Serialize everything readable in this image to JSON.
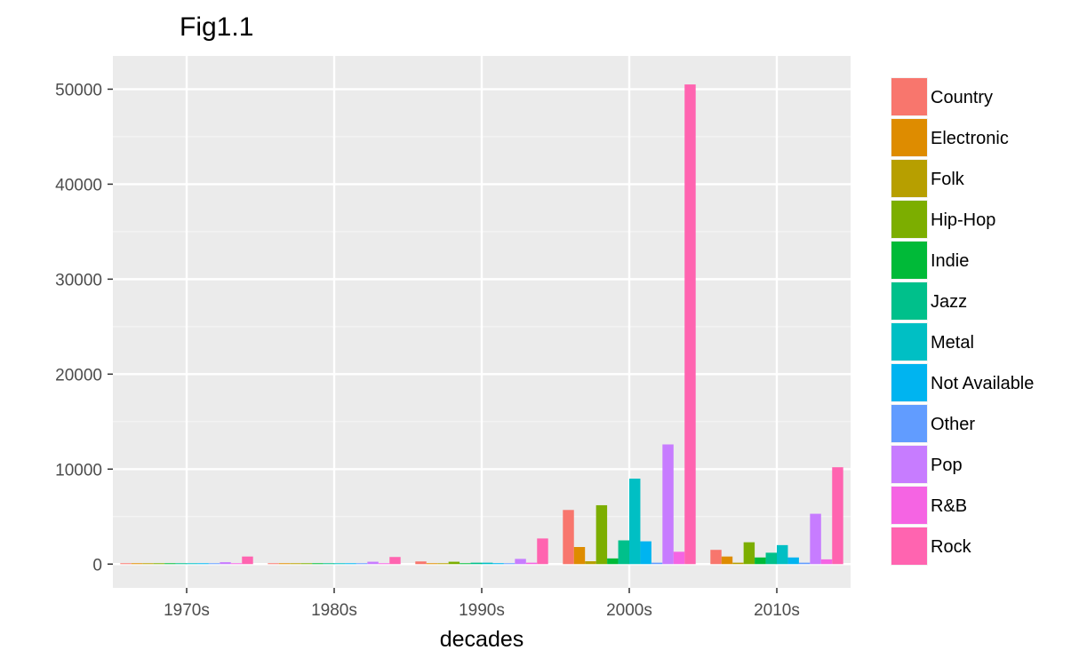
{
  "chart_data": {
    "type": "bar",
    "title": "Fig1.1",
    "xlabel": "decades",
    "ylabel": "",
    "categories": [
      "1970s",
      "1980s",
      "1990s",
      "2000s",
      "2010s"
    ],
    "ylim": [
      -2500,
      53500
    ],
    "yticks": [
      0,
      10000,
      20000,
      30000,
      40000,
      50000
    ],
    "grid": true,
    "legend_position": "right",
    "series": [
      {
        "name": "Country",
        "color": "#F8766D",
        "values": [
          40,
          80,
          280,
          5700,
          1500
        ]
      },
      {
        "name": "Electronic",
        "color": "#DE8C00",
        "values": [
          40,
          60,
          80,
          1800,
          800
        ]
      },
      {
        "name": "Folk",
        "color": "#B79F00",
        "values": [
          30,
          50,
          60,
          300,
          150
        ]
      },
      {
        "name": "Hip-Hop",
        "color": "#7CAE00",
        "values": [
          30,
          60,
          250,
          6200,
          2300
        ]
      },
      {
        "name": "Indie",
        "color": "#00BA38",
        "values": [
          30,
          40,
          60,
          600,
          700
        ]
      },
      {
        "name": "Jazz",
        "color": "#00C08B",
        "values": [
          30,
          50,
          150,
          2500,
          1200
        ]
      },
      {
        "name": "Metal",
        "color": "#00BFC4",
        "values": [
          40,
          60,
          150,
          9000,
          2000
        ]
      },
      {
        "name": "Not Available",
        "color": "#00B4F0",
        "values": [
          30,
          40,
          100,
          2400,
          700
        ]
      },
      {
        "name": "Other",
        "color": "#619CFF",
        "values": [
          30,
          40,
          50,
          150,
          150
        ]
      },
      {
        "name": "Pop",
        "color": "#C77CFF",
        "values": [
          200,
          250,
          550,
          12600,
          5300
        ]
      },
      {
        "name": "R&B",
        "color": "#F564E3",
        "values": [
          70,
          80,
          150,
          1300,
          500
        ]
      },
      {
        "name": "Rock",
        "color": "#FF64B0",
        "values": [
          800,
          750,
          2700,
          50500,
          10200
        ]
      }
    ]
  }
}
